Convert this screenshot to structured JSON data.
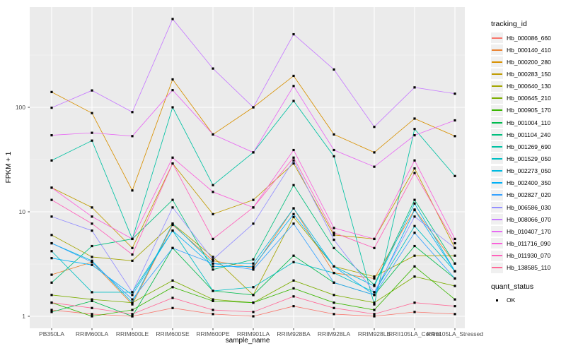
{
  "chart_data": {
    "type": "line",
    "title": "",
    "xlabel": "sample_name",
    "ylabel": "FPKM + 1",
    "y_scale": "log10",
    "y_ticks": [
      1,
      10,
      100
    ],
    "ylim": [
      0.77,
      910
    ],
    "grid": "major white on gray panel, minor at half-decades",
    "legend_position": "right",
    "legend_title": "tracking_id",
    "point_style": "small filled black squares on every data point",
    "panel_bg": "#EBEBEB",
    "grid_major_color": "#FFFFFF",
    "tick_text_color": "#4D4D4D",
    "categories": [
      "PB350LA",
      "RRIM600LA",
      "RRIM600LE",
      "RRIM600SE",
      "RRIM600PE",
      "RRIM901LA",
      "RRIM928BA",
      "RRIM928LA",
      "RRIM928LE",
      "RRII105LA_Control",
      "RRII105LA_Stressed"
    ],
    "series": [
      {
        "name": "Hb_000086_660",
        "color": "#F8766D",
        "values": [
          1.15,
          1.05,
          1.0,
          1.2,
          1.05,
          1.0,
          1.25,
          1.05,
          1.0,
          1.1,
          1.05
        ]
      },
      {
        "name": "Hb_000140_410",
        "color": "#EA8331",
        "values": [
          2.5,
          3.3,
          1.3,
          7.5,
          3.4,
          2.9,
          10.8,
          2.6,
          2.3,
          10.5,
          3.2
        ]
      },
      {
        "name": "Hb_000200_280",
        "color": "#D89000",
        "values": [
          140,
          88,
          16,
          185,
          55,
          100,
          200,
          55,
          37,
          78,
          53
        ]
      },
      {
        "name": "Hb_000283_150",
        "color": "#C09B00",
        "values": [
          17,
          11,
          4.5,
          29,
          9.5,
          13,
          29,
          6.0,
          5.5,
          26,
          4.5
        ]
      },
      {
        "name": "Hb_000640_130",
        "color": "#A3A500",
        "values": [
          6.0,
          3.7,
          3.4,
          7.7,
          3.7,
          1.6,
          8.9,
          3.0,
          2.4,
          3.8,
          3.8
        ]
      },
      {
        "name": "Hb_000645_210",
        "color": "#7CAE00",
        "values": [
          1.6,
          1.45,
          1.35,
          2.2,
          1.45,
          1.35,
          2.2,
          1.6,
          1.35,
          2.4,
          1.95
        ]
      },
      {
        "name": "Hb_000905_170",
        "color": "#39B600",
        "values": [
          1.35,
          1.0,
          1.15,
          1.9,
          1.4,
          1.35,
          1.85,
          1.35,
          1.15,
          3.0,
          1.45
        ]
      },
      {
        "name": "Hb_001004_110",
        "color": "#00BB4E",
        "values": [
          1.1,
          1.4,
          1.0,
          4.5,
          1.75,
          1.6,
          3.8,
          2.1,
          1.6,
          4.7,
          2.3
        ]
      },
      {
        "name": "Hb_001104_240",
        "color": "#00BF7D",
        "values": [
          2.1,
          4.7,
          5.5,
          13,
          2.8,
          3.5,
          18,
          4.5,
          2.0,
          13,
          3.2
        ]
      },
      {
        "name": "Hb_001269_690",
        "color": "#00C1A3",
        "values": [
          31,
          48,
          5.5,
          100,
          18,
          37,
          115,
          34,
          1.3,
          62,
          22
        ]
      },
      {
        "name": "Hb_001529_050",
        "color": "#00BFC4",
        "values": [
          4.2,
          1.7,
          1.7,
          6.6,
          1.75,
          1.9,
          3.3,
          2.6,
          1.7,
          7.3,
          2.7
        ]
      },
      {
        "name": "Hb_002273_050",
        "color": "#00BAE0",
        "values": [
          5.0,
          3.4,
          1.35,
          7.7,
          3.2,
          3.2,
          10.8,
          3.0,
          1.95,
          12,
          2.7
        ]
      },
      {
        "name": "Hb_002400_350",
        "color": "#00B0F6",
        "values": [
          3.6,
          3.1,
          1.6,
          6.6,
          3.0,
          3.0,
          9.5,
          3.0,
          1.6,
          10.4,
          2.7
        ]
      },
      {
        "name": "Hb_002827_020",
        "color": "#35A2FF",
        "values": [
          5.0,
          3.3,
          1.45,
          4.5,
          3.2,
          2.8,
          7.7,
          2.1,
          1.6,
          6.3,
          2.3
        ]
      },
      {
        "name": "Hb_006586_030",
        "color": "#9590FF",
        "values": [
          9.0,
          6.6,
          1.7,
          11,
          3.5,
          7.7,
          31,
          5.4,
          1.7,
          9.0,
          4.5
        ]
      },
      {
        "name": "Hb_008066_070",
        "color": "#C77CFF",
        "values": [
          99,
          145,
          90,
          700,
          235,
          100,
          500,
          230,
          65,
          155,
          135
        ]
      },
      {
        "name": "Hb_010407_170",
        "color": "#E76BF3",
        "values": [
          54,
          57,
          53,
          146,
          55,
          37,
          160,
          39,
          27,
          54,
          75
        ]
      },
      {
        "name": "Hb_011716_090",
        "color": "#FA62DB",
        "values": [
          17,
          9.0,
          5.5,
          33,
          15.5,
          11,
          39,
          7.0,
          5.5,
          31,
          5.5
        ]
      },
      {
        "name": "Hb_011930_070",
        "color": "#FF62BC",
        "values": [
          13,
          7.7,
          3.9,
          29,
          5.5,
          11,
          33,
          6.3,
          4.5,
          23.5,
          5.0
        ]
      },
      {
        "name": "Hb_138585_110",
        "color": "#FF6A98",
        "values": [
          1.35,
          1.2,
          1.05,
          1.5,
          1.15,
          1.1,
          1.55,
          1.2,
          1.05,
          1.35,
          1.25
        ]
      }
    ],
    "quant_status": {
      "title": "quant_status",
      "items": [
        {
          "label": "OK",
          "shape": "black-square"
        }
      ]
    }
  }
}
